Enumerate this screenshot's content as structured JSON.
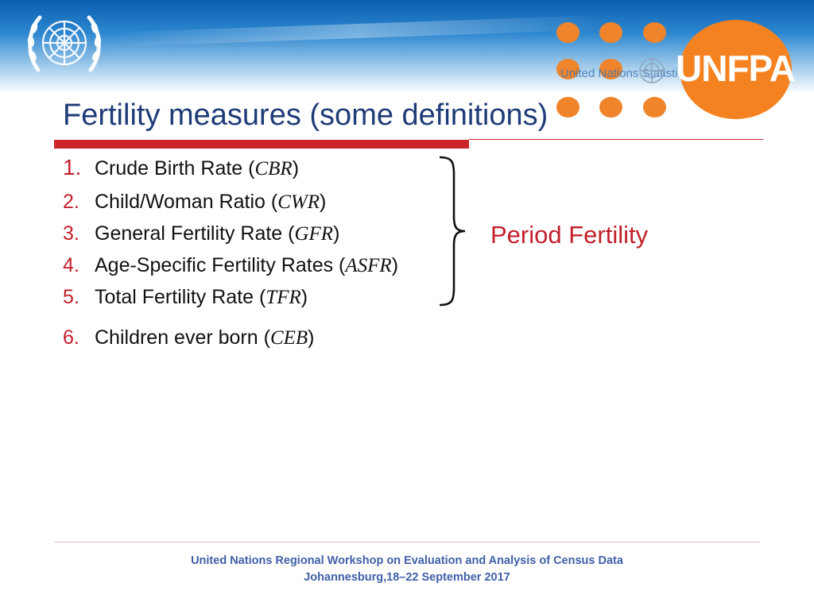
{
  "header": {
    "partner_logo_text": "UNFPA",
    "watermark_text": "United Nations Statistics"
  },
  "title": "Fertility measures (some definitions)",
  "measures": [
    {
      "number": "1.",
      "label": "Crude Birth Rate (",
      "abbr": "CBR",
      "close": ")"
    },
    {
      "number": "2.",
      "label": "Child/Woman Ratio (",
      "abbr": "CWR",
      "close": ")"
    },
    {
      "number": "3.",
      "label": "General Fertility Rate (",
      "abbr": "GFR",
      "close": ")"
    },
    {
      "number": "4.",
      "label": "Age-Specific Fertility Rates (",
      "abbr": "ASFR",
      "close": ")"
    },
    {
      "number": "5.",
      "label": "Total Fertility Rate (",
      "abbr": "TFR",
      "close": ")"
    },
    {
      "number": "6.",
      "label": "Children ever born (",
      "abbr": "CEB",
      "close": ")"
    }
  ],
  "group_label": "Period Fertility",
  "footer": {
    "line1": "United Nations Regional Workshop on Evaluation and Analysis of Census Data",
    "line2": "Johannesburg,18–22 September 2017"
  },
  "colors": {
    "title": "#1f3c78",
    "accent_red": "#cc2229",
    "unfpa_orange": "#f58220",
    "footer_blue": "#3f5fa8"
  }
}
